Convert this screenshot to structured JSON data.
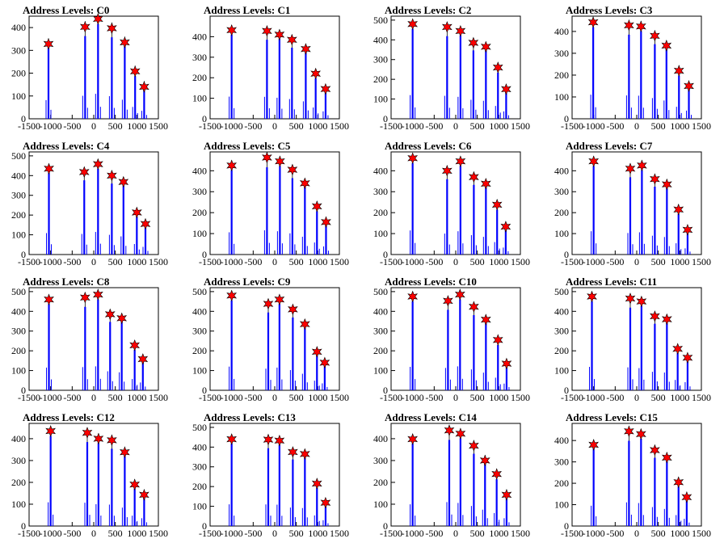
{
  "chart_data": [
    {
      "type": "bar",
      "title": "Address Levels: C0",
      "xlim": [
        -1500,
        1500
      ],
      "ylim": [
        0,
        450
      ],
      "yticks": [
        0,
        100,
        200,
        300,
        400
      ],
      "xticks": [
        -1500,
        -1000,
        -500,
        0,
        500,
        1000,
        1500
      ],
      "markers": [
        {
          "x": -1050,
          "y": 328
        },
        {
          "x": -200,
          "y": 403
        },
        {
          "x": 100,
          "y": 438
        },
        {
          "x": 420,
          "y": 397
        },
        {
          "x": 720,
          "y": 335
        },
        {
          "x": 960,
          "y": 208
        },
        {
          "x": 1170,
          "y": 140
        }
      ]
    },
    {
      "type": "bar",
      "title": "Address Levels: C1",
      "xlim": [
        -1500,
        1500
      ],
      "ylim": [
        0,
        500
      ],
      "yticks": [
        0,
        100,
        200,
        300,
        400
      ],
      "xticks": [
        -1500,
        -1000,
        -500,
        0,
        500,
        1000,
        1500
      ],
      "markers": [
        {
          "x": -1000,
          "y": 432
        },
        {
          "x": -180,
          "y": 428
        },
        {
          "x": 110,
          "y": 410
        },
        {
          "x": 400,
          "y": 385
        },
        {
          "x": 720,
          "y": 340
        },
        {
          "x": 950,
          "y": 220
        },
        {
          "x": 1180,
          "y": 145
        }
      ]
    },
    {
      "type": "bar",
      "title": "Address Levels: C2",
      "xlim": [
        -1500,
        1500
      ],
      "ylim": [
        0,
        520
      ],
      "yticks": [
        0,
        100,
        200,
        300,
        400,
        500
      ],
      "xticks": [
        -1500,
        -1000,
        -500,
        0,
        500,
        1000,
        1500
      ],
      "markers": [
        {
          "x": -1000,
          "y": 480
        },
        {
          "x": -200,
          "y": 465
        },
        {
          "x": 110,
          "y": 445
        },
        {
          "x": 410,
          "y": 385
        },
        {
          "x": 700,
          "y": 365
        },
        {
          "x": 980,
          "y": 260
        },
        {
          "x": 1170,
          "y": 150
        }
      ]
    },
    {
      "type": "bar",
      "title": "Address Levels: C3",
      "xlim": [
        -1500,
        1500
      ],
      "ylim": [
        0,
        470
      ],
      "yticks": [
        0,
        100,
        200,
        300,
        400
      ],
      "xticks": [
        -1500,
        -1000,
        -500,
        0,
        500,
        1000,
        1500
      ],
      "markers": [
        {
          "x": -1010,
          "y": 442
        },
        {
          "x": -180,
          "y": 428
        },
        {
          "x": 100,
          "y": 423
        },
        {
          "x": 420,
          "y": 380
        },
        {
          "x": 690,
          "y": 335
        },
        {
          "x": 980,
          "y": 220
        },
        {
          "x": 1210,
          "y": 150
        }
      ]
    },
    {
      "type": "bar",
      "title": "Address Levels: C4",
      "xlim": [
        -1500,
        1500
      ],
      "ylim": [
        0,
        520
      ],
      "yticks": [
        0,
        100,
        200,
        300,
        400,
        500
      ],
      "xticks": [
        -1500,
        -1000,
        -500,
        0,
        500,
        1000,
        1500
      ],
      "markers": [
        {
          "x": -1040,
          "y": 435
        },
        {
          "x": -220,
          "y": 418
        },
        {
          "x": 100,
          "y": 458
        },
        {
          "x": 420,
          "y": 400
        },
        {
          "x": 690,
          "y": 368
        },
        {
          "x": 1000,
          "y": 213
        },
        {
          "x": 1200,
          "y": 155
        }
      ]
    },
    {
      "type": "bar",
      "title": "Address Levels: C5",
      "xlim": [
        -1500,
        1500
      ],
      "ylim": [
        0,
        490
      ],
      "yticks": [
        0,
        100,
        200,
        300,
        400
      ],
      "xticks": [
        -1500,
        -1000,
        -500,
        0,
        500,
        1000,
        1500
      ],
      "markers": [
        {
          "x": -1000,
          "y": 425
        },
        {
          "x": -180,
          "y": 463
        },
        {
          "x": 120,
          "y": 445
        },
        {
          "x": 410,
          "y": 405
        },
        {
          "x": 700,
          "y": 340
        },
        {
          "x": 980,
          "y": 230
        },
        {
          "x": 1190,
          "y": 155
        }
      ]
    },
    {
      "type": "bar",
      "title": "Address Levels: C6",
      "xlim": [
        -1500,
        1500
      ],
      "ylim": [
        0,
        490
      ],
      "yticks": [
        0,
        100,
        200,
        300,
        400
      ],
      "xticks": [
        -1500,
        -1000,
        -500,
        0,
        500,
        1000,
        1500
      ],
      "markers": [
        {
          "x": -1000,
          "y": 460
        },
        {
          "x": -200,
          "y": 400
        },
        {
          "x": 110,
          "y": 445
        },
        {
          "x": 420,
          "y": 370
        },
        {
          "x": 700,
          "y": 338
        },
        {
          "x": 960,
          "y": 238
        },
        {
          "x": 1160,
          "y": 133
        }
      ]
    },
    {
      "type": "bar",
      "title": "Address Levels: C7",
      "xlim": [
        -1500,
        1500
      ],
      "ylim": [
        0,
        490
      ],
      "yticks": [
        0,
        100,
        200,
        300,
        400
      ],
      "xticks": [
        -1500,
        -1000,
        -500,
        0,
        500,
        1000,
        1500
      ],
      "markers": [
        {
          "x": -1000,
          "y": 445
        },
        {
          "x": -150,
          "y": 410
        },
        {
          "x": 120,
          "y": 425
        },
        {
          "x": 420,
          "y": 360
        },
        {
          "x": 700,
          "y": 335
        },
        {
          "x": 970,
          "y": 215
        },
        {
          "x": 1180,
          "y": 118
        }
      ]
    },
    {
      "type": "bar",
      "title": "Address Levels: C8",
      "xlim": [
        -1500,
        1500
      ],
      "ylim": [
        0,
        520
      ],
      "yticks": [
        0,
        100,
        200,
        300,
        400,
        500
      ],
      "xticks": [
        -1500,
        -1000,
        -500,
        0,
        500,
        1000,
        1500
      ],
      "markers": [
        {
          "x": -1040,
          "y": 460
        },
        {
          "x": -200,
          "y": 470
        },
        {
          "x": 100,
          "y": 485
        },
        {
          "x": 380,
          "y": 385
        },
        {
          "x": 650,
          "y": 365
        },
        {
          "x": 950,
          "y": 228
        },
        {
          "x": 1140,
          "y": 158
        }
      ]
    },
    {
      "type": "bar",
      "title": "Address Levels: C9",
      "xlim": [
        -1500,
        1500
      ],
      "ylim": [
        0,
        520
      ],
      "yticks": [
        0,
        100,
        200,
        300,
        400,
        500
      ],
      "xticks": [
        -1500,
        -1000,
        -500,
        0,
        500,
        1000,
        1500
      ],
      "markers": [
        {
          "x": -1000,
          "y": 480
        },
        {
          "x": -150,
          "y": 438
        },
        {
          "x": 110,
          "y": 460
        },
        {
          "x": 420,
          "y": 410
        },
        {
          "x": 700,
          "y": 335
        },
        {
          "x": 980,
          "y": 195
        },
        {
          "x": 1160,
          "y": 140
        }
      ]
    },
    {
      "type": "bar",
      "title": "Address Levels: C10",
      "xlim": [
        -1500,
        1500
      ],
      "ylim": [
        0,
        520
      ],
      "yticks": [
        0,
        100,
        200,
        300,
        400,
        500
      ],
      "xticks": [
        -1500,
        -1000,
        -500,
        0,
        500,
        1000,
        1500
      ],
      "markers": [
        {
          "x": -1000,
          "y": 475
        },
        {
          "x": -180,
          "y": 453
        },
        {
          "x": 100,
          "y": 485
        },
        {
          "x": 420,
          "y": 423
        },
        {
          "x": 700,
          "y": 358
        },
        {
          "x": 980,
          "y": 255
        },
        {
          "x": 1180,
          "y": 135
        }
      ]
    },
    {
      "type": "bar",
      "title": "Address Levels: C11",
      "xlim": [
        -1500,
        1500
      ],
      "ylim": [
        0,
        520
      ],
      "yticks": [
        0,
        100,
        200,
        300,
        400,
        500
      ],
      "xticks": [
        -1500,
        -1000,
        -500,
        0,
        500,
        1000,
        1500
      ],
      "markers": [
        {
          "x": -1040,
          "y": 475
        },
        {
          "x": -150,
          "y": 465
        },
        {
          "x": 110,
          "y": 450
        },
        {
          "x": 420,
          "y": 375
        },
        {
          "x": 700,
          "y": 360
        },
        {
          "x": 950,
          "y": 210
        },
        {
          "x": 1180,
          "y": 165
        }
      ]
    },
    {
      "type": "bar",
      "title": "Address Levels: C12",
      "xlim": [
        -1500,
        1500
      ],
      "ylim": [
        0,
        470
      ],
      "yticks": [
        0,
        100,
        200,
        300,
        400
      ],
      "xticks": [
        -1500,
        -1000,
        -500,
        0,
        500,
        1000,
        1500
      ],
      "markers": [
        {
          "x": -1000,
          "y": 435
        },
        {
          "x": -150,
          "y": 427
        },
        {
          "x": 110,
          "y": 400
        },
        {
          "x": 420,
          "y": 393
        },
        {
          "x": 720,
          "y": 338
        },
        {
          "x": 950,
          "y": 190
        },
        {
          "x": 1170,
          "y": 143
        }
      ]
    },
    {
      "type": "bar",
      "title": "Address Levels: C13",
      "xlim": [
        -1500,
        1500
      ],
      "ylim": [
        0,
        520
      ],
      "yticks": [
        0,
        100,
        200,
        300,
        400,
        500
      ],
      "xticks": [
        -1500,
        -1000,
        -500,
        0,
        500,
        1000,
        1500
      ],
      "markers": [
        {
          "x": -1000,
          "y": 440
        },
        {
          "x": -150,
          "y": 438
        },
        {
          "x": 110,
          "y": 433
        },
        {
          "x": 420,
          "y": 375
        },
        {
          "x": 700,
          "y": 365
        },
        {
          "x": 980,
          "y": 215
        },
        {
          "x": 1180,
          "y": 118
        }
      ]
    },
    {
      "type": "bar",
      "title": "Address Levels: C14",
      "xlim": [
        -1500,
        1500
      ],
      "ylim": [
        0,
        470
      ],
      "yticks": [
        0,
        100,
        200,
        300,
        400
      ],
      "xticks": [
        -1500,
        -1000,
        -500,
        0,
        500,
        1000,
        1500
      ],
      "markers": [
        {
          "x": -1000,
          "y": 398
        },
        {
          "x": -150,
          "y": 438
        },
        {
          "x": 110,
          "y": 423
        },
        {
          "x": 420,
          "y": 368
        },
        {
          "x": 680,
          "y": 300
        },
        {
          "x": 950,
          "y": 238
        },
        {
          "x": 1180,
          "y": 143
        }
      ]
    },
    {
      "type": "bar",
      "title": "Address Levels: C15",
      "xlim": [
        -1500,
        1500
      ],
      "ylim": [
        0,
        480
      ],
      "yticks": [
        0,
        100,
        200,
        300,
        400
      ],
      "xticks": [
        -1500,
        -1000,
        -500,
        0,
        500,
        1000,
        1500
      ],
      "markers": [
        {
          "x": -1000,
          "y": 380
        },
        {
          "x": -180,
          "y": 443
        },
        {
          "x": 100,
          "y": 430
        },
        {
          "x": 420,
          "y": 355
        },
        {
          "x": 700,
          "y": 320
        },
        {
          "x": 970,
          "y": 205
        },
        {
          "x": 1160,
          "y": 135
        }
      ]
    }
  ],
  "colors": {
    "bars": "#0000ff",
    "markers": "#ff0000",
    "marker_edge": "#000000",
    "axes": "#000000"
  }
}
